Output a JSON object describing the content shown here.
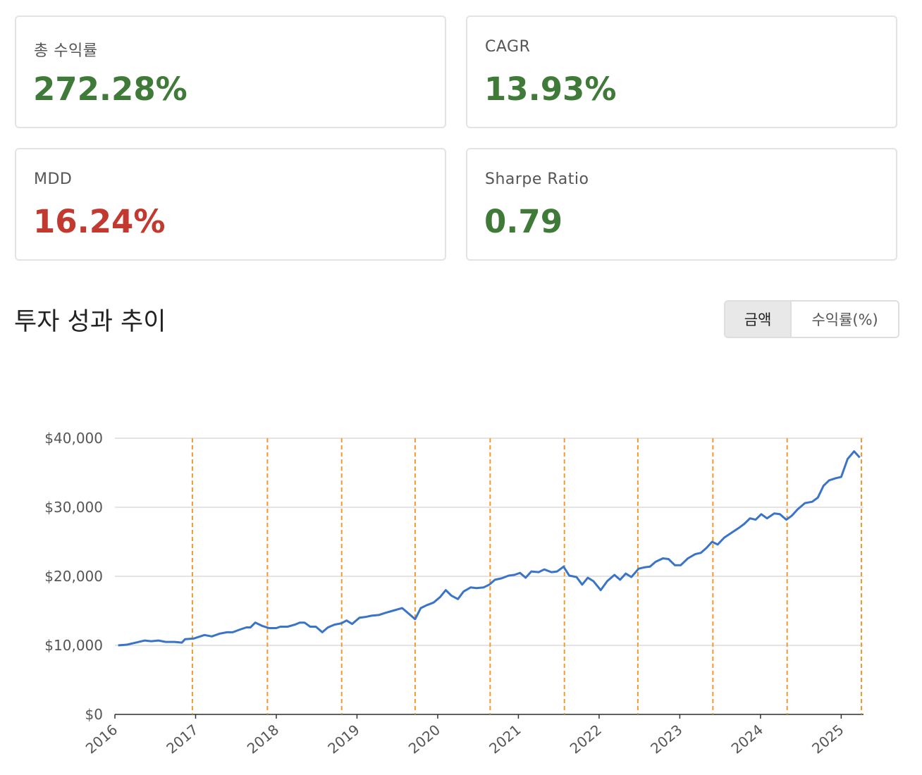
{
  "metrics": [
    {
      "label": "총 수익률",
      "value": "272.28%",
      "color": "#3f7a38"
    },
    {
      "label": "CAGR",
      "value": "13.93%",
      "color": "#3f7a38"
    },
    {
      "label": "MDD",
      "value": "16.24%",
      "color": "#c2392f"
    },
    {
      "label": "Sharpe Ratio",
      "value": "0.79",
      "color": "#3f7a38"
    }
  ],
  "section_title": "투자 성과 추이",
  "toggle": {
    "options": [
      "금액",
      "수익률(%)"
    ],
    "active": 0
  },
  "chart_data": {
    "type": "line",
    "x": [
      2016.04,
      2016.15,
      2016.26,
      2016.37,
      2016.45,
      2016.54,
      2016.63,
      2016.74,
      2016.83,
      2016.87,
      2016.98,
      2017.11,
      2017.2,
      2017.3,
      2017.39,
      2017.46,
      2017.55,
      2017.63,
      2017.68,
      2017.74,
      2017.83,
      2017.91,
      2018.0,
      2018.05,
      2018.14,
      2018.23,
      2018.29,
      2018.35,
      2018.42,
      2018.49,
      2018.57,
      2018.64,
      2018.72,
      2018.81,
      2018.87,
      2018.94,
      2019.03,
      2019.1,
      2019.18,
      2019.27,
      2019.35,
      2019.44,
      2019.56,
      2019.64,
      2019.72,
      2019.79,
      2019.86,
      2019.95,
      2020.03,
      2020.1,
      2020.17,
      2020.25,
      2020.32,
      2020.41,
      2020.48,
      2020.57,
      2020.64,
      2020.71,
      2020.79,
      2020.88,
      2020.95,
      2021.02,
      2021.09,
      2021.16,
      2021.25,
      2021.32,
      2021.41,
      2021.48,
      2021.56,
      2021.63,
      2021.72,
      2021.79,
      2021.86,
      2021.93,
      2022.02,
      2022.1,
      2022.19,
      2022.26,
      2022.33,
      2022.4,
      2022.49,
      2022.56,
      2022.63,
      2022.7,
      2022.79,
      2022.86,
      2022.94,
      2023.01,
      2023.1,
      2023.19,
      2023.26,
      2023.33,
      2023.4,
      2023.47,
      2023.55,
      2023.64,
      2023.73,
      2023.8,
      2023.87,
      2023.94,
      2024.01,
      2024.08,
      2024.17,
      2024.24,
      2024.32,
      2024.39,
      2024.46,
      2024.55,
      2024.64,
      2024.71,
      2024.78,
      2024.85,
      2024.93,
      2025.0,
      2025.08,
      2025.16,
      2025.23
    ],
    "series": [
      {
        "color": "#3a74c9",
        "values": [
          10000,
          10100,
          10400,
          10700,
          10600,
          10700,
          10500,
          10500,
          10400,
          10900,
          11000,
          11500,
          11300,
          11700,
          11900,
          11900,
          12300,
          12600,
          12600,
          13300,
          12800,
          12500,
          12500,
          12700,
          12700,
          13000,
          13300,
          13300,
          12700,
          12700,
          11900,
          12600,
          13000,
          13200,
          13600,
          13100,
          14000,
          14100,
          14300,
          14400,
          14700,
          15000,
          15400,
          14600,
          13800,
          15400,
          15800,
          16200,
          17000,
          18000,
          17200,
          16700,
          17800,
          18400,
          18300,
          18400,
          18800,
          19500,
          19700,
          20100,
          20200,
          20500,
          19800,
          20700,
          20600,
          21000,
          20600,
          20700,
          21400,
          20100,
          19900,
          18800,
          19800,
          19300,
          18000,
          19300,
          20200,
          19500,
          20400,
          19900,
          21100,
          21300,
          21400,
          22100,
          22600,
          22500,
          21600,
          21600,
          22600,
          23200,
          23400,
          24100,
          25000,
          24600,
          25600,
          26300,
          27000,
          27600,
          28400,
          28200,
          29000,
          28400,
          29100,
          29000,
          28200,
          28800,
          29700,
          30600,
          30800,
          31400,
          33100,
          33900,
          34200,
          34400,
          37000,
          38100,
          37200
        ]
      }
    ],
    "vlines": [
      2016.96,
      2017.89,
      2018.81,
      2019.72,
      2020.65,
      2021.57,
      2022.48,
      2023.41,
      2024.33,
      2025.25
    ],
    "vline_color": "#f39a2e",
    "xlim": [
      2016,
      2025.25
    ],
    "xticks": [
      2016,
      2017,
      2018,
      2019,
      2020,
      2021,
      2022,
      2023,
      2024,
      2025
    ],
    "ylim": [
      0,
      40000
    ],
    "yticks": [
      {
        "value": 0,
        "label": "$0"
      },
      {
        "value": 10000,
        "label": "$10,000"
      },
      {
        "value": 20000,
        "label": "$20,000"
      },
      {
        "value": 30000,
        "label": "$30,000"
      },
      {
        "value": 40000,
        "label": "$40,000"
      }
    ],
    "grid": true
  }
}
